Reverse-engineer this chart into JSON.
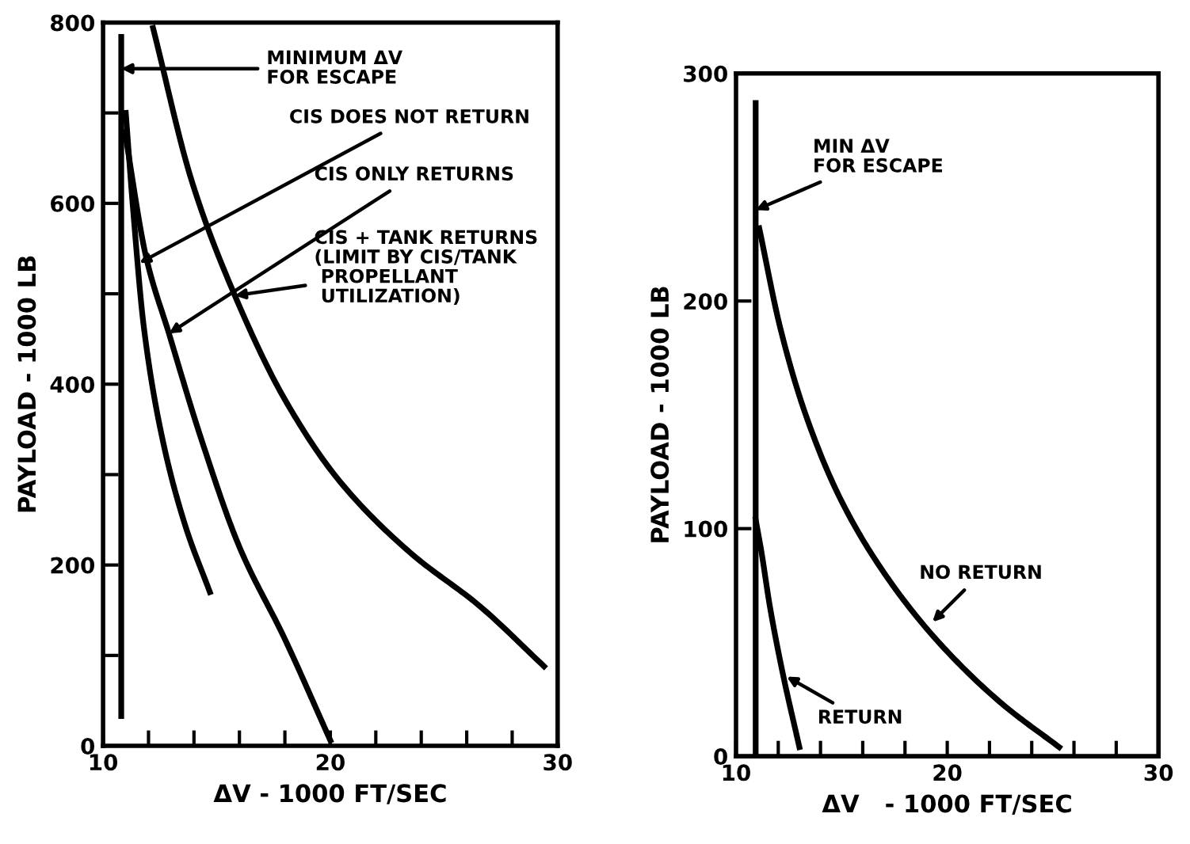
{
  "chart_data": [
    {
      "type": "line",
      "xlabel": "ΔV - 1000 FT/SEC",
      "ylabel": "PAYLOAD - 1000 LB",
      "xlim": [
        10,
        30
      ],
      "ylim": [
        0,
        800
      ],
      "xticks": [
        10,
        {
          "value": 12,
          "label": null
        },
        {
          "value": 14,
          "label": null
        },
        {
          "value": 16,
          "label": null
        },
        {
          "value": 18,
          "label": null
        },
        20,
        {
          "value": 22,
          "label": null
        },
        {
          "value": 24,
          "label": null
        },
        {
          "value": 26,
          "label": null
        },
        {
          "value": 28,
          "label": null
        },
        30
      ],
      "yticks": [
        0,
        {
          "value": 100,
          "label": null
        },
        200,
        {
          "value": 300,
          "label": null
        },
        400,
        {
          "value": 500,
          "label": null
        },
        600,
        {
          "value": 700,
          "label": null
        },
        800
      ],
      "grid": false,
      "legend": false,
      "marker": "none",
      "line_style": "solid",
      "series": [
        {
          "color": "#000000",
          "x": [
            10.8,
            10.8
          ],
          "values": [
            33,
            784
          ]
        },
        {
          "color": "#000000",
          "x": [
            11.0,
            11.3,
            11.8,
            12.6,
            13.6,
            14.7
          ],
          "values": [
            700,
            600,
            462,
            341,
            245,
            170
          ]
        },
        {
          "color": "#000000",
          "x": [
            10.96,
            11.9,
            12.9,
            14.3,
            16.0,
            18.0,
            20.0
          ],
          "values": [
            679,
            540,
            456,
            341,
            220,
            118,
            6
          ]
        },
        {
          "color": "#000000",
          "x": [
            12.2,
            13.9,
            15.8,
            18.0,
            20.4,
            23.5,
            26.6,
            29.4
          ],
          "values": [
            794,
            625,
            498,
            383,
            293,
            214,
            154,
            88
          ]
        }
      ],
      "annotations": [
        {
          "text": "MINIMUM ΔV\nFOR ESCAPE",
          "x": 10.8,
          "y": 749
        },
        {
          "text": "CIS DOES NOT RETURN",
          "x": 11.6,
          "y": 534
        },
        {
          "text": "CIS ONLY RETURNS",
          "x": 12.9,
          "y": 456
        },
        {
          "text": "CIS + TANK RETURNS\n(LIMIT BY CIS/TANK\n PROPELLANT\n UTILIZATION)",
          "x": 15.8,
          "y": 498
        }
      ]
    },
    {
      "type": "line",
      "xlabel": "ΔV   - 1000 FT/SEC",
      "ylabel": "PAYLOAD - 1000 LB",
      "xlim": [
        10,
        30
      ],
      "ylim": [
        0,
        300
      ],
      "xticks": [
        10,
        {
          "value": 12,
          "label": null
        },
        {
          "value": 14,
          "label": null
        },
        {
          "value": 16,
          "label": null
        },
        {
          "value": 18,
          "label": null
        },
        20,
        {
          "value": 22,
          "label": null
        },
        {
          "value": 24,
          "label": null
        },
        {
          "value": 26,
          "label": null
        },
        {
          "value": 28,
          "label": null
        },
        30
      ],
      "yticks": [
        0,
        100,
        200,
        300
      ],
      "grid": false,
      "legend": false,
      "marker": "none",
      "line_style": "solid",
      "series": [
        {
          "color": "#000000",
          "x": [
            10.93,
            10.93
          ],
          "values": [
            0,
            287
          ]
        },
        {
          "color": "#000000",
          "x": [
            11.1,
            12.1,
            13.3,
            15.0,
            17.2,
            19.7,
            22.6,
            25.3
          ],
          "values": [
            232,
            188,
            150,
            112,
            78,
            49,
            23,
            4
          ]
        },
        {
          "color": "#000000",
          "x": [
            10.93,
            11.2,
            11.6,
            12.2,
            13.0
          ],
          "values": [
            104,
            90,
            66,
            37,
            4
          ]
        }
      ],
      "annotations": [
        {
          "text": "MIN ΔV\nFOR ESCAPE",
          "x": 10.93,
          "y": 240
        },
        {
          "text": "NO RETURN",
          "x": 19.3,
          "y": 59
        },
        {
          "text": "RETURN",
          "x": 12.4,
          "y": 35
        }
      ]
    }
  ]
}
